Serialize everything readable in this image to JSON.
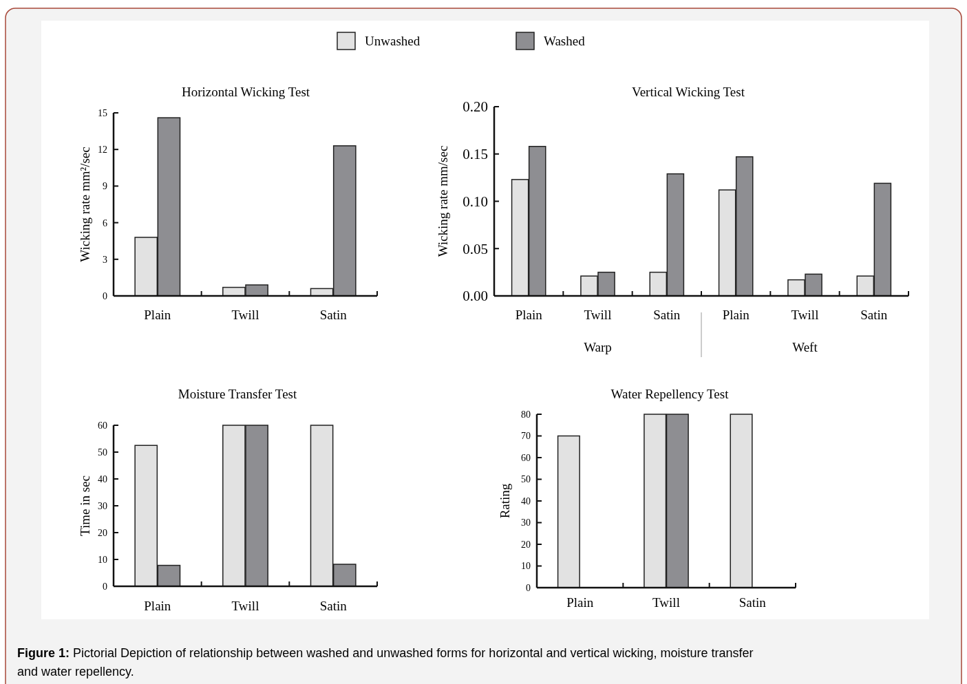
{
  "chart_data": [
    {
      "type": "bar",
      "title": "Horizontal Wicking Test",
      "ylabel": "Wicking rate mm²/sec",
      "categories": [
        "Plain",
        "Twill",
        "Satin"
      ],
      "legend": "top",
      "series": [
        {
          "name": "Unwashed",
          "color": "#e2e2e2",
          "values": [
            4.8,
            0.7,
            0.6
          ]
        },
        {
          "name": "Washed",
          "color": "#8e8e92",
          "values": [
            14.6,
            0.9,
            12.3
          ]
        }
      ],
      "ylim": [
        0,
        15
      ],
      "yticks": [
        0,
        3,
        6,
        9,
        12,
        15
      ]
    },
    {
      "type": "bar",
      "title": "Vertical Wicking Test",
      "ylabel": "Wicking rate mm/sec",
      "categories": [
        "Plain",
        "Twill",
        "Satin",
        "Plain",
        "Twill",
        "Satin"
      ],
      "annotations": [
        "Warp",
        "Weft"
      ],
      "series": [
        {
          "color": "#e2e2e2",
          "values": [
            0.123,
            0.021,
            0.025,
            0.112,
            0.017,
            0.021
          ]
        },
        {
          "color": "#8e8e92",
          "values": [
            0.158,
            0.025,
            0.129,
            0.147,
            0.023,
            0.119
          ]
        }
      ],
      "ylim": [
        0,
        0.2
      ],
      "yticks": [
        {
          "value": 0,
          "label": "0.00"
        },
        {
          "value": 0.05,
          "label": "0.05"
        },
        {
          "value": 0.1,
          "label": "0.10"
        },
        {
          "value": 0.15,
          "label": "0.15"
        },
        {
          "value": 0.2,
          "label": "0.20"
        }
      ]
    },
    {
      "type": "bar",
      "title": "Moisture Transfer Test",
      "ylabel": "Time in sec",
      "categories": [
        "Plain",
        "Twill",
        "Satin"
      ],
      "series": [
        {
          "color": "#e2e2e2",
          "values": [
            52.5,
            60,
            60
          ]
        },
        {
          "color": "#8e8e92",
          "values": [
            7.8,
            60,
            8.2
          ]
        }
      ],
      "ylim": [
        0,
        60
      ],
      "yticks": [
        0,
        10,
        20,
        30,
        40,
        50,
        60
      ]
    },
    {
      "type": "bar",
      "title": "Water Repellency Test",
      "ylabel": "Rating",
      "categories": [
        "Plain",
        "Twill",
        "Satin"
      ],
      "series": [
        {
          "color": "#e2e2e2",
          "values": [
            70,
            80,
            80
          ]
        },
        {
          "color": "#8e8e92",
          "values": [
            null,
            80,
            null
          ]
        }
      ],
      "ylim": [
        0,
        80
      ],
      "yticks": [
        0,
        10,
        20,
        30,
        40,
        50,
        60,
        70,
        80
      ]
    },
    {
      "type": "other",
      "title": "Figure 1:",
      "annotations": [
        "Pictorial Depiction of relationship between washed and unwashed forms for horizontal and vertical wicking, moisture transfer and water repellency."
      ]
    }
  ]
}
